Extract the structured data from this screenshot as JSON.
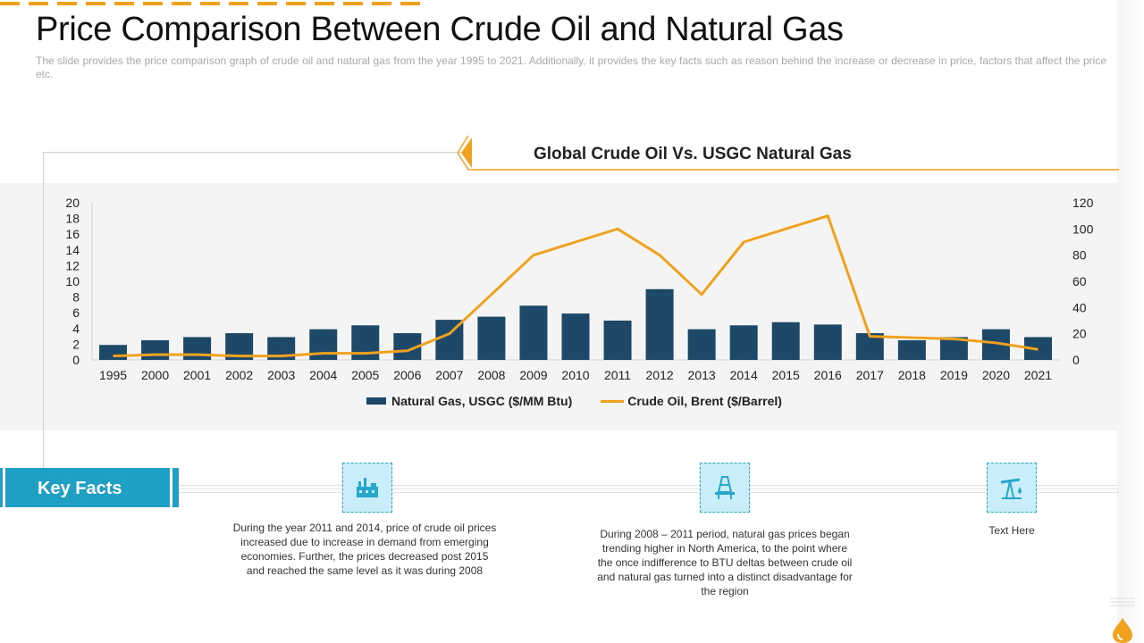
{
  "page": {
    "title": "Price Comparison Between Crude Oil and Natural Gas",
    "subtitle": "The slide provides the price comparison graph of crude oil and natural gas from the year 1995 to 2021. Additionally, it provides the key facts such as reason behind the increase or decrease in price, factors that affect the price etc."
  },
  "colors": {
    "accent": "#f0a21f",
    "bar": "#1d4868",
    "key_facts_bg": "#1f9fc4",
    "icon_bg": "#c9eef9"
  },
  "chart_data": {
    "type": "bar",
    "title": "Global Crude Oil Vs. USGC Natural Gas",
    "categories": [
      "1995",
      "2000",
      "2001",
      "2002",
      "2003",
      "2004",
      "2005",
      "2006",
      "2007",
      "2008",
      "2009",
      "2010",
      "2011",
      "2012",
      "2013",
      "2014",
      "2015",
      "2016",
      "2017",
      "2018",
      "2019",
      "2020",
      "2021"
    ],
    "series": [
      {
        "name": "Natural Gas, USGC ($/MM Btu)",
        "type": "bar",
        "axis": "left",
        "values": [
          1.9,
          2.5,
          2.9,
          3.4,
          2.9,
          3.9,
          4.4,
          3.4,
          5.1,
          5.5,
          6.9,
          5.9,
          5.0,
          9.0,
          3.9,
          4.4,
          4.8,
          4.5,
          3.4,
          2.5,
          2.9,
          3.9,
          2.9
        ]
      },
      {
        "name": "Crude Oil, Brent ($/Barrel)",
        "type": "line",
        "axis": "right",
        "values": [
          3,
          4,
          4,
          3,
          3,
          5,
          5,
          7,
          20,
          50,
          80,
          90,
          100,
          80,
          50,
          90,
          100,
          110,
          18,
          17,
          16,
          13,
          8
        ]
      }
    ],
    "y_left": {
      "min": 0,
      "max": 20,
      "ticks": [
        0,
        2,
        4,
        6,
        8,
        10,
        12,
        14,
        16,
        18,
        20
      ]
    },
    "y_right": {
      "min": 0,
      "max": 120,
      "ticks": [
        0,
        20,
        40,
        60,
        80,
        100,
        120
      ]
    },
    "legend_position": "bottom-center",
    "grid": false
  },
  "key_facts": {
    "label": "Key Facts",
    "items": [
      {
        "icon": "oil-refinery-icon",
        "text": "During the year 2011 and 2014, price of crude oil prices increased due to increase in demand from emerging economies. Further, the prices decreased post 2015 and reached the same level  as it was during 2008"
      },
      {
        "icon": "oil-rig-icon",
        "text": "During 2008 – 2011 period, natural gas prices began trending higher in North America, to the point where the once indifference  to BTU deltas between  crude oil and natural gas turned into a distinct disadvantage  for the region"
      },
      {
        "icon": "oil-pump-icon",
        "text": "Text Here"
      }
    ]
  }
}
